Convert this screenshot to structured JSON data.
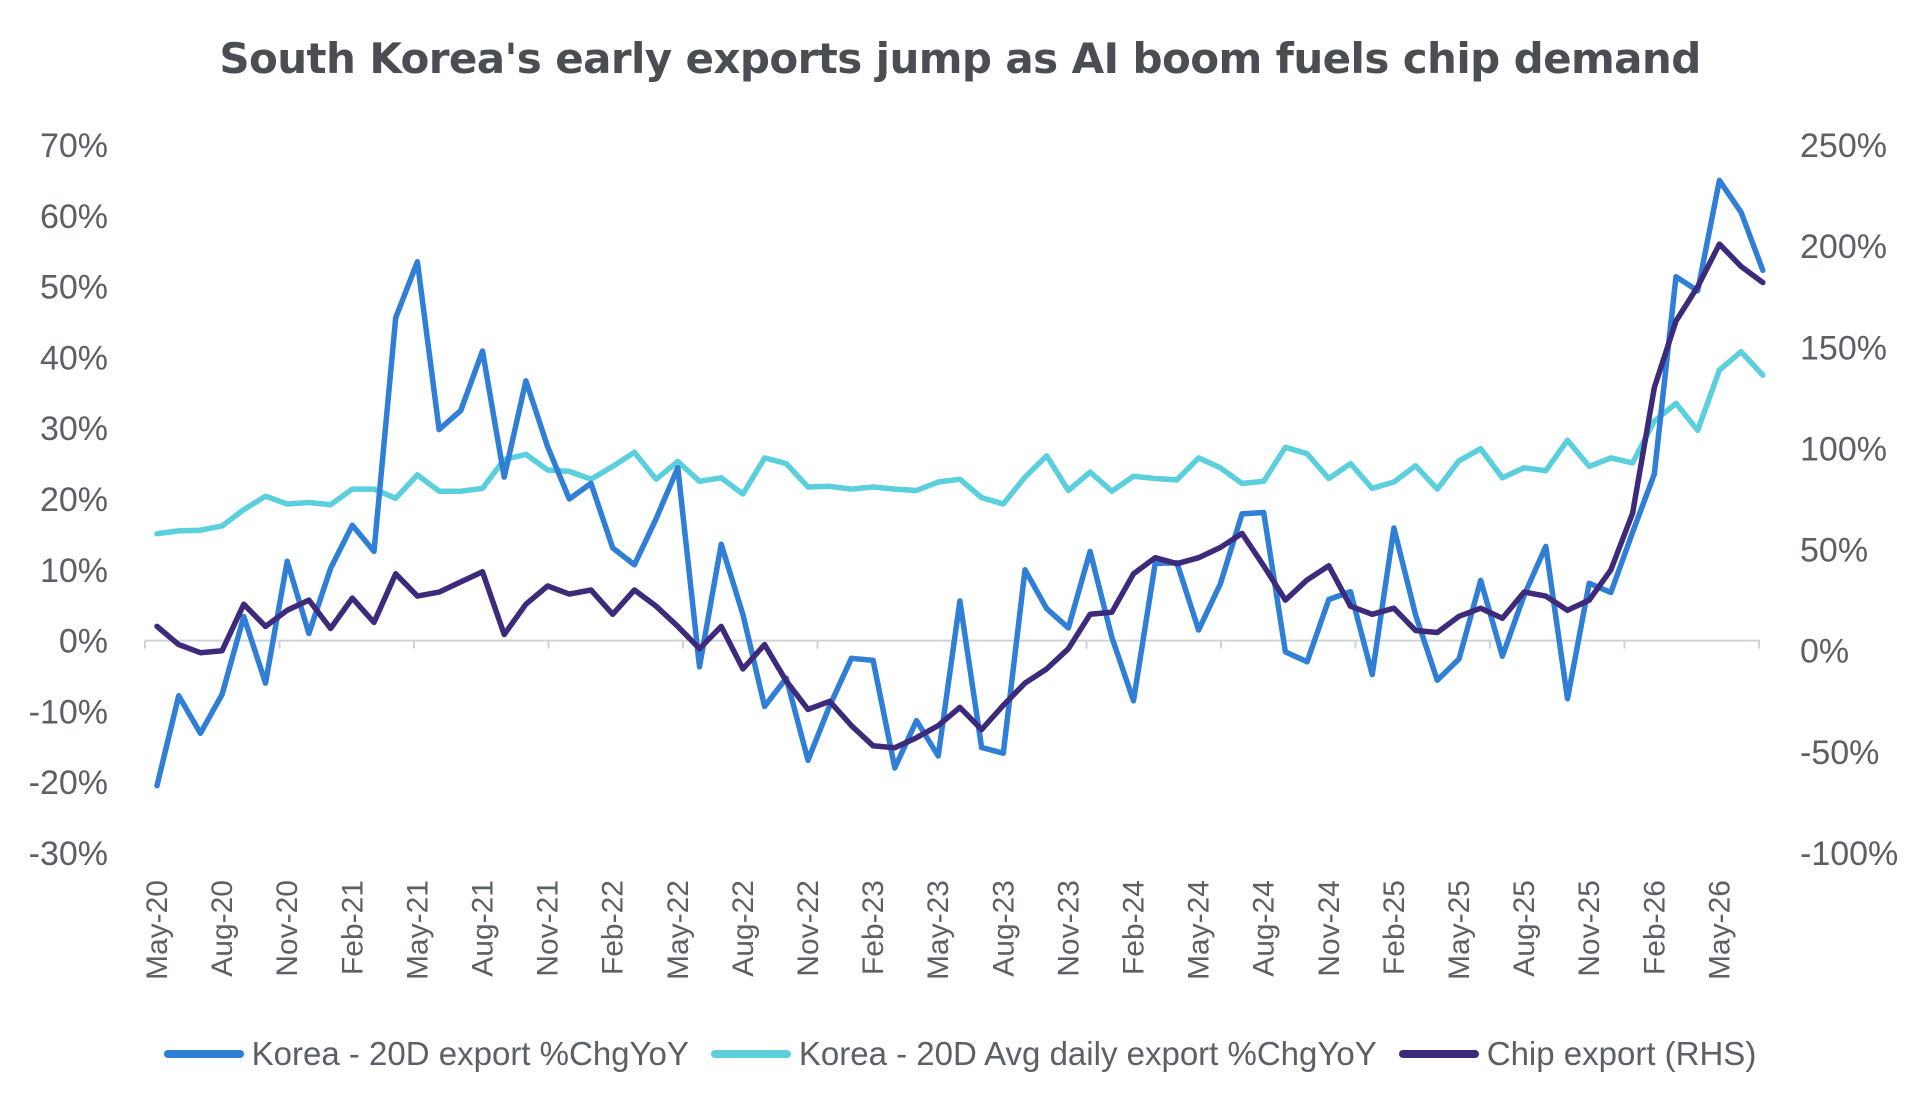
{
  "chart_data": {
    "type": "line",
    "title": "South Korea's early exports jump as AI boom fuels chip demand",
    "y_left": {
      "ticks": [
        "70%",
        "60%",
        "50%",
        "40%",
        "30%",
        "20%",
        "10%",
        "0%",
        "-10%",
        "-20%",
        "-30%"
      ],
      "range": [
        -30,
        70
      ]
    },
    "y_right": {
      "ticks": [
        "250%",
        "200%",
        "150%",
        "100%",
        "50%",
        "0%",
        "-50%",
        "-100%"
      ],
      "range": [
        -100,
        250
      ]
    },
    "x_ticks": [
      "May-20",
      "Aug-20",
      "Nov-20",
      "Feb-21",
      "May-21",
      "Aug-21",
      "Nov-21",
      "Feb-22",
      "May-22",
      "Aug-22",
      "Nov-22",
      "Feb-23",
      "May-23",
      "Aug-23",
      "Nov-23",
      "Feb-24",
      "May-24",
      "Aug-24",
      "Nov-24",
      "Feb-25",
      "May-25",
      "Aug-25",
      "Nov-25",
      "Feb-26",
      "May-26"
    ],
    "grid": false,
    "legend": "bottom",
    "series": [
      {
        "name": "Korea - 20D export %ChgYoY",
        "color": "#2f7fd6",
        "axis": "left",
        "values": [
          -20.5,
          -7.8,
          -13.1,
          -7.6,
          3.4,
          -6.0,
          11.2,
          1.0,
          10.2,
          16.3,
          12.6,
          45.6,
          53.5,
          29.8,
          32.5,
          40.9,
          23.1,
          36.7,
          27.4,
          20.0,
          22.2,
          13.1,
          10.7,
          17.2,
          24.4,
          -3.7,
          13.6,
          3.7,
          -9.3,
          -5.3,
          -16.9,
          -9.2,
          -2.5,
          -2.8,
          -18.0,
          -11.3,
          -16.3,
          5.6,
          -15.1,
          -15.9,
          10.0,
          4.5,
          1.8,
          12.6,
          0.5,
          -8.5,
          10.9,
          11.0,
          1.5,
          8.0,
          17.9,
          18.1,
          -1.6,
          -3.0,
          5.8,
          6.9,
          -4.8,
          15.9,
          3.6,
          -5.6,
          -2.6,
          8.5,
          -2.2,
          6.4,
          13.3,
          -8.2,
          8.1,
          6.8,
          15.3,
          23.5,
          51.4,
          49.4,
          65.0,
          60.5,
          52.3
        ]
      },
      {
        "name": "Korea - 20D Avg daily export %ChgYoY",
        "color": "#5ccfdd",
        "axis": "left",
        "values": [
          15.1,
          15.5,
          15.6,
          16.2,
          18.5,
          20.4,
          19.3,
          19.5,
          19.2,
          21.4,
          21.4,
          20.1,
          23.4,
          21.1,
          21.1,
          21.5,
          25.6,
          26.3,
          24.1,
          23.9,
          22.8,
          24.6,
          26.6,
          22.8,
          25.3,
          22.5,
          23.0,
          20.7,
          25.8,
          25.0,
          21.7,
          21.8,
          21.4,
          21.7,
          21.4,
          21.2,
          22.4,
          22.8,
          20.2,
          19.3,
          23.1,
          26.1,
          21.2,
          23.8,
          21.1,
          23.2,
          22.9,
          22.7,
          25.8,
          24.4,
          22.2,
          22.5,
          27.3,
          26.4,
          22.9,
          25.0,
          21.5,
          22.4,
          24.7,
          21.4,
          25.4,
          27.1,
          23.0,
          24.4,
          24.0,
          28.3,
          24.6,
          25.8,
          25.1,
          31.0,
          33.5,
          29.7,
          38.2,
          40.8,
          37.5
        ]
      },
      {
        "name": "Chip export (RHS)",
        "color": "#3d2a7a",
        "axis": "right",
        "values": [
          12,
          3,
          -1,
          0,
          23,
          12,
          20,
          25,
          11,
          26,
          14,
          38,
          27,
          29,
          34,
          39,
          8,
          23,
          32,
          28,
          30,
          18,
          30,
          22,
          12,
          1,
          12,
          -9,
          3,
          -15,
          -29,
          -25,
          -37,
          -47,
          -48,
          -43,
          -37,
          -28,
          -39,
          -27,
          -16,
          -9,
          1,
          18,
          19,
          38,
          46,
          43,
          46,
          51,
          58,
          42,
          25,
          35,
          42,
          22,
          18,
          21,
          10,
          9,
          17,
          21,
          16,
          29,
          27,
          20,
          25,
          40,
          68,
          130,
          163,
          180,
          201,
          190,
          182
        ]
      }
    ]
  }
}
